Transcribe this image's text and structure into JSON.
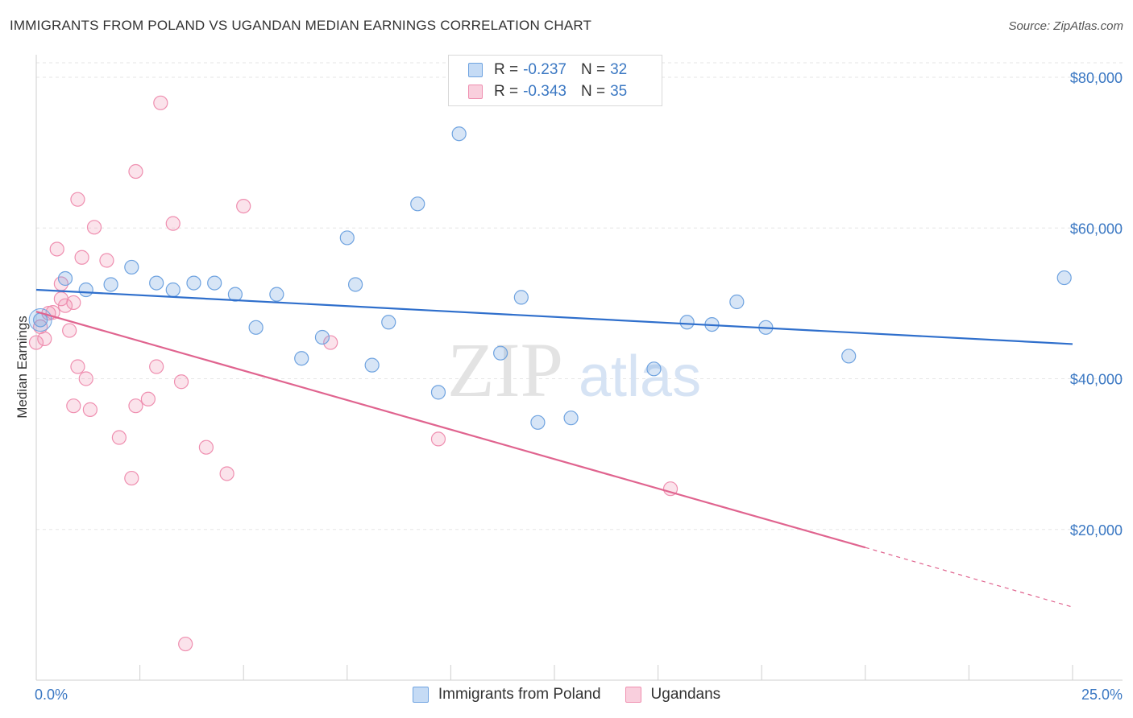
{
  "header": {
    "title": "IMMIGRANTS FROM POLAND VS UGANDAN MEDIAN EARNINGS CORRELATION CHART",
    "source": "Source: ZipAtlas.com"
  },
  "watermark": {
    "zip": "ZIP",
    "atlas": "atlas"
  },
  "legend": {
    "rows": [
      {
        "r_label": "R =",
        "r_value": "-0.237",
        "n_label": "N =",
        "n_value": "32",
        "color": "#6fa3e0"
      },
      {
        "r_label": "R =",
        "r_value": "-0.343",
        "n_label": "N =",
        "n_value": "35",
        "color": "#ef8fb0"
      }
    ]
  },
  "bottom_legend": [
    {
      "label": "Immigrants from Poland",
      "color": "#6fa3e0"
    },
    {
      "label": "Ugandans",
      "color": "#ef8fb0"
    }
  ],
  "chart_data": {
    "type": "scatter",
    "title": "IMMIGRANTS FROM POLAND VS UGANDAN MEDIAN EARNINGS CORRELATION CHART",
    "xlabel": "",
    "ylabel": "Median Earnings",
    "xlim": [
      0,
      25
    ],
    "ylim": [
      0,
      82000
    ],
    "x_tick_labels": [
      "0.0%",
      "25.0%"
    ],
    "y_ticks": [
      20000,
      40000,
      60000,
      80000
    ],
    "y_tick_labels": [
      "$20,000",
      "$40,000",
      "$60,000",
      "$80,000"
    ],
    "grid": true,
    "legend_position": "top-center",
    "series": [
      {
        "name": "Immigrants from Poland",
        "color": "#6fa3e0",
        "points": [
          [
            0.1,
            47800
          ],
          [
            0.7,
            53300
          ],
          [
            1.2,
            51800
          ],
          [
            1.8,
            52500
          ],
          [
            2.3,
            54800
          ],
          [
            2.9,
            52700
          ],
          [
            3.3,
            51800
          ],
          [
            3.8,
            52700
          ],
          [
            4.3,
            52700
          ],
          [
            4.8,
            51200
          ],
          [
            5.3,
            46800
          ],
          [
            5.8,
            51200
          ],
          [
            6.4,
            42700
          ],
          [
            6.9,
            45500
          ],
          [
            7.5,
            58700
          ],
          [
            7.7,
            52500
          ],
          [
            8.1,
            41800
          ],
          [
            8.5,
            47500
          ],
          [
            9.2,
            63200
          ],
          [
            9.7,
            38200
          ],
          [
            10.2,
            72500
          ],
          [
            11.2,
            43400
          ],
          [
            11.7,
            50800
          ],
          [
            12.1,
            34200
          ],
          [
            12.9,
            34800
          ],
          [
            14.9,
            41300
          ],
          [
            15.7,
            47500
          ],
          [
            16.3,
            47200
          ],
          [
            16.9,
            50200
          ],
          [
            17.6,
            46800
          ],
          [
            19.6,
            43000
          ],
          [
            24.8,
            53400
          ]
        ],
        "trend": {
          "x": [
            0,
            25
          ],
          "y": [
            51800,
            44600
          ]
        }
      },
      {
        "name": "Ugandans",
        "color": "#ef8fb0",
        "points": [
          [
            0.0,
            44800
          ],
          [
            0.2,
            45300
          ],
          [
            0.3,
            48700
          ],
          [
            0.4,
            48800
          ],
          [
            0.5,
            57200
          ],
          [
            0.6,
            50600
          ],
          [
            0.6,
            52600
          ],
          [
            0.7,
            49700
          ],
          [
            0.8,
            46400
          ],
          [
            0.9,
            50100
          ],
          [
            0.9,
            36400
          ],
          [
            1.0,
            63800
          ],
          [
            1.0,
            41600
          ],
          [
            1.1,
            56100
          ],
          [
            1.2,
            40000
          ],
          [
            1.3,
            35900
          ],
          [
            1.4,
            60100
          ],
          [
            1.7,
            55700
          ],
          [
            2.0,
            32200
          ],
          [
            2.3,
            26800
          ],
          [
            2.4,
            67500
          ],
          [
            2.4,
            36400
          ],
          [
            2.7,
            37300
          ],
          [
            2.9,
            41600
          ],
          [
            3.0,
            76600
          ],
          [
            3.3,
            60600
          ],
          [
            3.5,
            39600
          ],
          [
            3.6,
            4800
          ],
          [
            4.1,
            30900
          ],
          [
            4.6,
            27400
          ],
          [
            5.0,
            62900
          ],
          [
            7.1,
            44800
          ],
          [
            9.7,
            32000
          ],
          [
            15.3,
            25400
          ],
          [
            0.1,
            46900
          ]
        ],
        "trend": {
          "x": [
            0,
            20
          ],
          "y": [
            48900,
            17600
          ]
        },
        "trend_dashed": {
          "x": [
            20,
            25
          ],
          "y": [
            17600,
            9700
          ]
        }
      }
    ]
  }
}
